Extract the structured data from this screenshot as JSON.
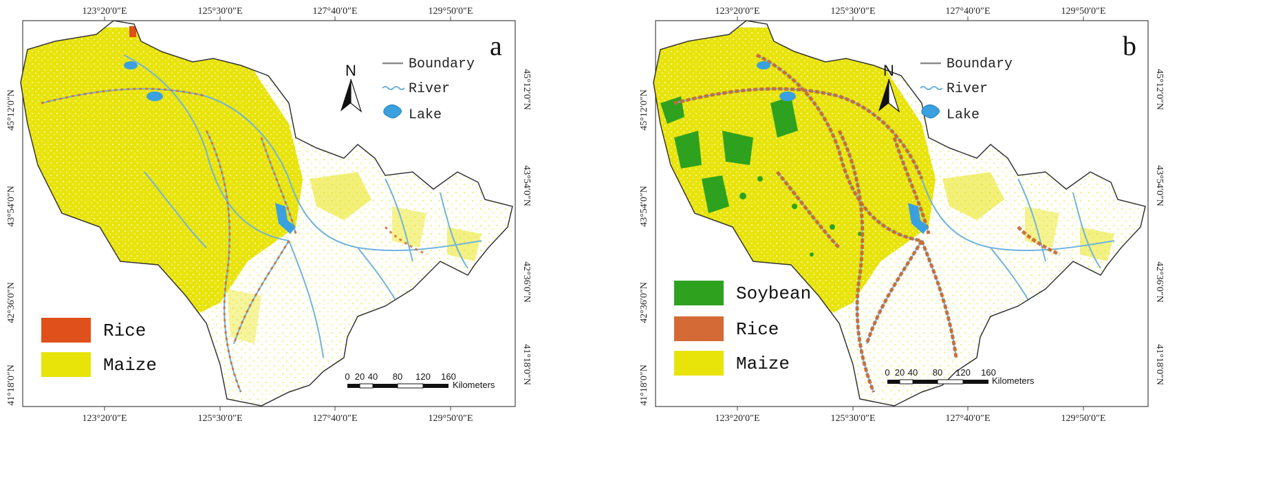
{
  "colors": {
    "maize": "#e8e40a",
    "rice": "#e0501a",
    "rice_b": "#d46a36",
    "soybean": "#2ea21e",
    "river": "#6fb3dd",
    "lake": "#3aa0e0",
    "boundary": "#8a8a8a"
  },
  "axes": {
    "lon_ticks": [
      "123°20′0″E",
      "125°30′0″E",
      "127°40′0″E",
      "129°50′0″E"
    ],
    "lat_ticks": [
      "45°12′0″N",
      "43°54′0″N",
      "42°36′0″N",
      "41°18′0″N"
    ]
  },
  "legend_top": {
    "boundary": "Boundary",
    "river": "River",
    "lake": "Lake"
  },
  "north_label": "N",
  "scale_bar": {
    "ticks": [
      "0",
      "20",
      "40",
      "80",
      "120",
      "160"
    ],
    "unit": "Kilometers"
  },
  "panel_a": {
    "letter": "a",
    "legend": [
      {
        "label": "Rice",
        "color_key": "rice"
      },
      {
        "label": "Maize",
        "color_key": "maize"
      }
    ]
  },
  "panel_b": {
    "letter": "b",
    "legend": [
      {
        "label": "Soybean",
        "color_key": "soybean"
      },
      {
        "label": "Rice",
        "color_key": "rice_b"
      },
      {
        "label": "Maize",
        "color_key": "maize"
      }
    ]
  }
}
